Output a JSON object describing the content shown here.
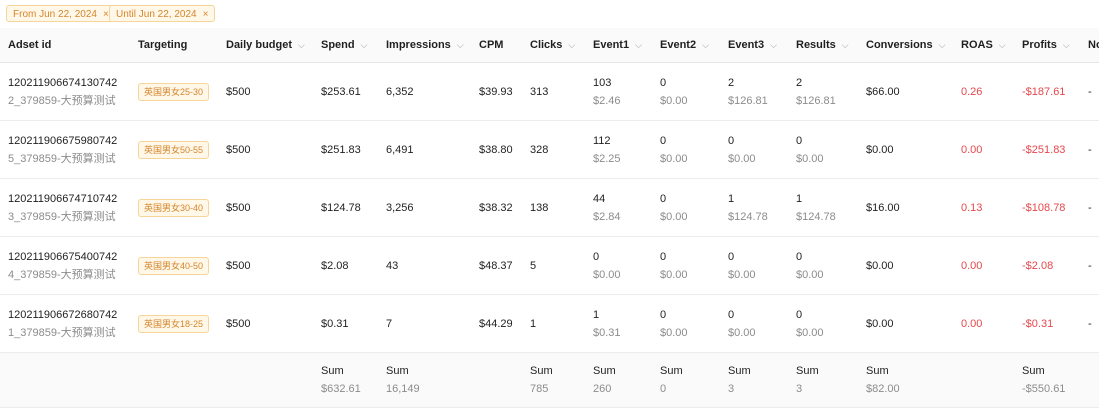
{
  "filters": [
    {
      "label": "From Jun 22, 2024"
    },
    {
      "label": "Until Jun 22, 2024"
    }
  ],
  "close_glyph": "×",
  "columns": [
    "Adset id",
    "Targeting",
    "Daily budget",
    "Spend",
    "Impressions",
    "CPM",
    "Clicks",
    "Event1",
    "Event2",
    "Event3",
    "Results",
    "Conversions",
    "ROAS",
    "Profits",
    "No"
  ],
  "rows": [
    {
      "id": "120211906674130742",
      "name": "2_379859-大预算测试",
      "targeting": "英国男女25-30",
      "budget": "$500",
      "spend": "$253.61",
      "impressions": "6,352",
      "cpm": "$39.93",
      "clicks": "313",
      "event1": "103",
      "event1_cost": "$2.46",
      "event2": "0",
      "event2_cost": "$0.00",
      "event3": "2",
      "event3_cost": "$126.81",
      "results": "2",
      "results_cost": "$126.81",
      "conversions": "$66.00",
      "roas": "0.26",
      "profits": "-$187.61",
      "extra": "-"
    },
    {
      "id": "120211906675980742",
      "name": "5_379859-大预算测试",
      "targeting": "英国男女50-55",
      "budget": "$500",
      "spend": "$251.83",
      "impressions": "6,491",
      "cpm": "$38.80",
      "clicks": "328",
      "event1": "112",
      "event1_cost": "$2.25",
      "event2": "0",
      "event2_cost": "$0.00",
      "event3": "0",
      "event3_cost": "$0.00",
      "results": "0",
      "results_cost": "$0.00",
      "conversions": "$0.00",
      "roas": "0.00",
      "profits": "-$251.83",
      "extra": "-"
    },
    {
      "id": "120211906674710742",
      "name": "3_379859-大预算测试",
      "targeting": "英国男女30-40",
      "budget": "$500",
      "spend": "$124.78",
      "impressions": "3,256",
      "cpm": "$38.32",
      "clicks": "138",
      "event1": "44",
      "event1_cost": "$2.84",
      "event2": "0",
      "event2_cost": "$0.00",
      "event3": "1",
      "event3_cost": "$124.78",
      "results": "1",
      "results_cost": "$124.78",
      "conversions": "$16.00",
      "roas": "0.13",
      "profits": "-$108.78",
      "extra": "-"
    },
    {
      "id": "120211906675400742",
      "name": "4_379859-大预算测试",
      "targeting": "英国男女40-50",
      "budget": "$500",
      "spend": "$2.08",
      "impressions": "43",
      "cpm": "$48.37",
      "clicks": "5",
      "event1": "0",
      "event1_cost": "$0.00",
      "event2": "0",
      "event2_cost": "$0.00",
      "event3": "0",
      "event3_cost": "$0.00",
      "results": "0",
      "results_cost": "$0.00",
      "conversions": "$0.00",
      "roas": "0.00",
      "profits": "-$2.08",
      "extra": "-"
    },
    {
      "id": "120211906672680742",
      "name": "1_379859-大预算测试",
      "targeting": "英国男女18-25",
      "budget": "$500",
      "spend": "$0.31",
      "impressions": "7",
      "cpm": "$44.29",
      "clicks": "1",
      "event1": "1",
      "event1_cost": "$0.31",
      "event2": "0",
      "event2_cost": "$0.00",
      "event3": "0",
      "event3_cost": "$0.00",
      "results": "0",
      "results_cost": "$0.00",
      "conversions": "$0.00",
      "roas": "0.00",
      "profits": "-$0.31",
      "extra": "-"
    }
  ],
  "sum": {
    "label": "Sum",
    "spend": "$632.61",
    "impressions": "16,149",
    "clicks": "785",
    "event1": "260",
    "event2": "0",
    "event3": "3",
    "results": "3",
    "conversions": "$82.00",
    "profits": "-$550.61"
  },
  "colors": {
    "accent": "#d4862b",
    "negative": "#e5484d",
    "muted": "#8c8c8c"
  }
}
